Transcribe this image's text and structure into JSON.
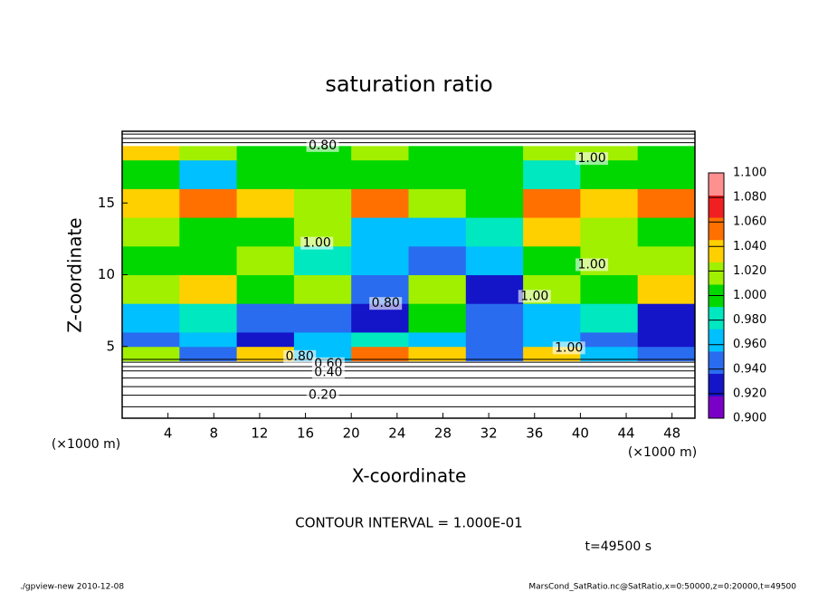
{
  "chart_data": {
    "type": "contour-fill",
    "title": "saturation ratio",
    "xlabel": "X-coordinate",
    "ylabel": "Z-coordinate",
    "x_unit": "(×1000 m)",
    "y_unit": "(×1000 m)",
    "xlim": [
      0,
      50
    ],
    "ylim": [
      0,
      20
    ],
    "xticks": [
      4,
      8,
      12,
      16,
      20,
      24,
      28,
      32,
      36,
      40,
      44,
      48
    ],
    "yticks": [
      5,
      10,
      15
    ],
    "x_edges": [
      0,
      5,
      10,
      15,
      20,
      25,
      30,
      35,
      40,
      45,
      50
    ],
    "z_edges": [
      4,
      5,
      6,
      8,
      10,
      12,
      14,
      16,
      18,
      19,
      20
    ],
    "values": [
      [
        1.02,
        0.95,
        1.04,
        0.96,
        1.05,
        1.03,
        0.94,
        1.04,
        0.97,
        0.95
      ],
      [
        0.95,
        0.96,
        0.93,
        0.97,
        0.98,
        0.96,
        0.95,
        0.97,
        0.94,
        0.93
      ],
      [
        0.97,
        0.99,
        0.94,
        0.95,
        0.93,
        1.0,
        0.94,
        0.96,
        0.98,
        0.92
      ],
      [
        1.01,
        1.03,
        1.0,
        1.02,
        0.94,
        1.01,
        0.93,
        1.02,
        1.0,
        1.04
      ],
      [
        1.0,
        1.0,
        1.01,
        0.99,
        0.96,
        0.95,
        0.96,
        1.0,
        1.02,
        1.01
      ],
      [
        1.01,
        1.0,
        1.0,
        1.02,
        0.97,
        0.96,
        0.98,
        1.03,
        1.01,
        1.0
      ],
      [
        1.03,
        1.05,
        1.03,
        1.01,
        1.05,
        1.02,
        1.0,
        1.06,
        1.04,
        1.06
      ],
      [
        1.0,
        0.96,
        1.0,
        1.0,
        1.0,
        1.0,
        1.0,
        0.99,
        1.0,
        1.0
      ],
      [
        1.04,
        1.01,
        1.0,
        1.0,
        1.01,
        1.0,
        1.0,
        1.02,
        1.01,
        1.0
      ],
      [
        0.8,
        0.8,
        0.8,
        0.8,
        0.8,
        0.8,
        0.8,
        0.8,
        0.8,
        0.8
      ]
    ],
    "contour_lines_z": [
      0.8,
      1.6,
      2.2,
      2.8,
      3.3,
      3.6,
      3.9,
      4.1,
      19.2,
      19.5,
      19.8
    ],
    "contour_labels": [
      {
        "label": "0.80",
        "x": 17.5,
        "z": 19.0
      },
      {
        "label": "1.00",
        "x": 41,
        "z": 18.1
      },
      {
        "label": "1.00",
        "x": 17,
        "z": 12.2
      },
      {
        "label": "1.00",
        "x": 41,
        "z": 10.7
      },
      {
        "label": "1.00",
        "x": 36,
        "z": 8.5
      },
      {
        "label": "0.80",
        "x": 23,
        "z": 8.0
      },
      {
        "label": "1.00",
        "x": 39,
        "z": 4.9
      },
      {
        "label": "0.80",
        "x": 15.5,
        "z": 4.3
      },
      {
        "label": "0.60",
        "x": 18,
        "z": 3.8
      },
      {
        "label": "0.40",
        "x": 18,
        "z": 3.2
      },
      {
        "label": "0.20",
        "x": 17.5,
        "z": 1.6
      }
    ],
    "colorbar": {
      "lim": [
        0.9,
        1.1
      ],
      "ticks": [
        {
          "value": 0.9,
          "label": "0.900"
        },
        {
          "value": 0.92,
          "label": "0.920"
        },
        {
          "value": 0.94,
          "label": "0.940"
        },
        {
          "value": 0.96,
          "label": "0.960"
        },
        {
          "value": 0.98,
          "label": "0.980"
        },
        {
          "value": 1.0,
          "label": "1.000"
        },
        {
          "value": 1.02,
          "label": "1.020"
        },
        {
          "value": 1.04,
          "label": "1.040"
        },
        {
          "value": 1.06,
          "label": "1.060"
        },
        {
          "value": 1.08,
          "label": "1.080"
        },
        {
          "value": 1.1,
          "label": "1.100"
        }
      ],
      "colors": [
        "#7a00c8",
        "#1414c8",
        "#2a6cf0",
        "#00c0ff",
        "#00e8c0",
        "#00d800",
        "#a0f000",
        "#ffd000",
        "#ff7000",
        "#f02020",
        "#ff9090"
      ],
      "out_of_range_color": "#ffffff"
    },
    "annotation": "CONTOUR INTERVAL = 1.000E-01",
    "time_label": "t=49500 s",
    "footer_left": "./gpview-new  2010-12-08",
    "footer_right": "MarsCond_SatRatio.nc@SatRatio,x=0:50000,z=0:20000,t=49500"
  }
}
